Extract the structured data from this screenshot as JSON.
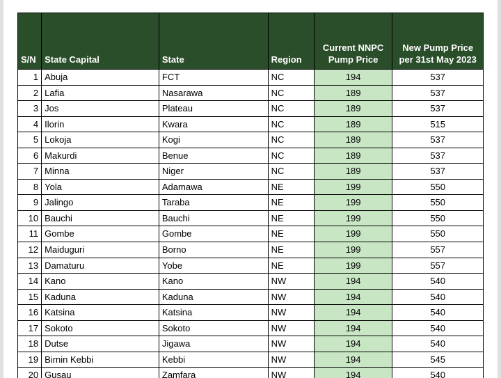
{
  "colors": {
    "header_bg": "#2a4d2a",
    "header_text": "#ffffff",
    "row_bg": "#ffffff",
    "highlight_bg": "#c8e6c4",
    "border": "#000000",
    "page_bg": "#e0e0e0"
  },
  "columns": [
    {
      "key": "sn",
      "label": "S/N",
      "align": "right"
    },
    {
      "key": "capital",
      "label": "State Capital",
      "align": "left"
    },
    {
      "key": "state",
      "label": "State",
      "align": "left"
    },
    {
      "key": "region",
      "label": "Region",
      "align": "left"
    },
    {
      "key": "current",
      "label": "Current NNPC Pump Price",
      "align": "center"
    },
    {
      "key": "new",
      "label": "New Pump Price per 31st May 2023",
      "align": "center"
    }
  ],
  "rows": [
    {
      "sn": 1,
      "capital": "Abuja",
      "state": "FCT",
      "region": "NC",
      "current": 194,
      "new": 537
    },
    {
      "sn": 2,
      "capital": "Lafia",
      "state": "Nasarawa",
      "region": "NC",
      "current": 189,
      "new": 537
    },
    {
      "sn": 3,
      "capital": "Jos",
      "state": "Plateau",
      "region": "NC",
      "current": 189,
      "new": 537
    },
    {
      "sn": 4,
      "capital": "Ilorin",
      "state": "Kwara",
      "region": "NC",
      "current": 189,
      "new": 515
    },
    {
      "sn": 5,
      "capital": "Lokoja",
      "state": "Kogi",
      "region": "NC",
      "current": 189,
      "new": 537
    },
    {
      "sn": 6,
      "capital": "Makurdi",
      "state": "Benue",
      "region": "NC",
      "current": 189,
      "new": 537
    },
    {
      "sn": 7,
      "capital": "Minna",
      "state": "Niger",
      "region": "NC",
      "current": 189,
      "new": 537
    },
    {
      "sn": 8,
      "capital": "Yola",
      "state": "Adamawa",
      "region": "NE",
      "current": 199,
      "new": 550
    },
    {
      "sn": 9,
      "capital": "Jalingo",
      "state": "Taraba",
      "region": "NE",
      "current": 199,
      "new": 550
    },
    {
      "sn": 10,
      "capital": "Bauchi",
      "state": "Bauchi",
      "region": "NE",
      "current": 199,
      "new": 550
    },
    {
      "sn": 11,
      "capital": "Gombe",
      "state": "Gombe",
      "region": "NE",
      "current": 199,
      "new": 550
    },
    {
      "sn": 12,
      "capital": "Maiduguri",
      "state": "Borno",
      "region": "NE",
      "current": 199,
      "new": 557
    },
    {
      "sn": 13,
      "capital": "Damaturu",
      "state": "Yobe",
      "region": "NE",
      "current": 199,
      "new": 557
    },
    {
      "sn": 14,
      "capital": "Kano",
      "state": "Kano",
      "region": "NW",
      "current": 194,
      "new": 540
    },
    {
      "sn": 15,
      "capital": "Kaduna",
      "state": "Kaduna",
      "region": "NW",
      "current": 194,
      "new": 540
    },
    {
      "sn": 16,
      "capital": "Katsina",
      "state": "Katsina",
      "region": "NW",
      "current": 194,
      "new": 540
    },
    {
      "sn": 17,
      "capital": "Sokoto",
      "state": "Sokoto",
      "region": "NW",
      "current": 194,
      "new": 540
    },
    {
      "sn": 18,
      "capital": "Dutse",
      "state": "Jigawa",
      "region": "NW",
      "current": 194,
      "new": 540
    },
    {
      "sn": 19,
      "capital": "Birnin Kebbi",
      "state": "Kebbi",
      "region": "NW",
      "current": 194,
      "new": 545
    },
    {
      "sn": 20,
      "capital": "Gusau",
      "state": "Zamfara",
      "region": "NW",
      "current": 194,
      "new": 540
    }
  ]
}
